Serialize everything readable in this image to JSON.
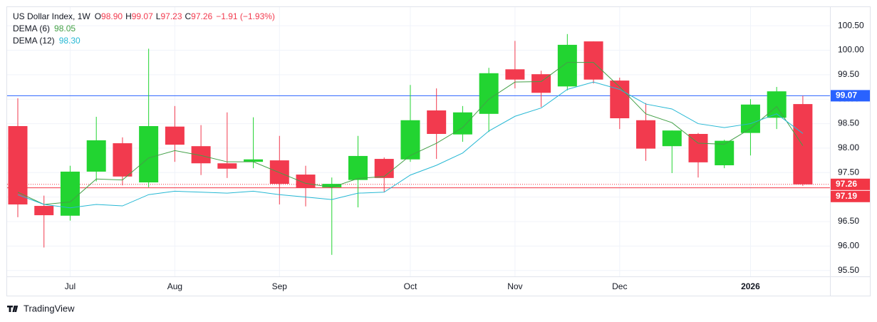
{
  "chart_data": {
    "type": "candlestick",
    "title": "US Dollar Index, 1W",
    "ohlc_legend": [
      {
        "key": "O",
        "value": "98.90"
      },
      {
        "key": "H",
        "value": "99.07"
      },
      {
        "key": "L",
        "value": "97.23"
      },
      {
        "key": "C",
        "value": "97.26"
      }
    ],
    "change": "−1.91 (−1.93%)",
    "categories": [
      null,
      null,
      "Jul",
      null,
      null,
      null,
      "Aug",
      null,
      null,
      null,
      "Sep",
      null,
      null,
      null,
      null,
      "Oct",
      null,
      null,
      null,
      "Nov",
      null,
      null,
      null,
      "Dec",
      null,
      null,
      null,
      null,
      "2026",
      null,
      null
    ],
    "open": [
      98.45,
      96.82,
      96.62,
      97.52,
      98.1,
      97.3,
      98.44,
      98.04,
      97.69,
      97.72,
      97.75,
      97.46,
      97.2,
      97.35,
      97.78,
      97.77,
      98.77,
      98.28,
      98.7,
      99.61,
      99.51,
      99.26,
      100.18,
      99.38,
      98.57,
      98.04,
      98.29,
      97.65,
      98.31,
      98.62,
      98.9
    ],
    "high": [
      99.02,
      97.03,
      97.64,
      98.64,
      98.22,
      100.03,
      98.86,
      98.47,
      98.73,
      98.63,
      98.25,
      97.64,
      97.4,
      98.25,
      97.81,
      99.29,
      99.22,
      98.86,
      99.64,
      100.19,
      99.58,
      100.33,
      100.18,
      99.44,
      98.92,
      98.36,
      98.31,
      98.17,
      99.0,
      99.25,
      99.07
    ],
    "low": [
      96.59,
      95.97,
      96.52,
      97.32,
      97.24,
      97.2,
      97.72,
      97.45,
      97.39,
      97.59,
      96.85,
      96.81,
      95.82,
      96.79,
      97.1,
      97.72,
      97.78,
      98.13,
      98.33,
      99.22,
      98.84,
      99.18,
      99.32,
      98.39,
      97.74,
      97.49,
      97.4,
      97.59,
      97.85,
      98.39,
      97.23
    ],
    "close": [
      96.85,
      96.63,
      97.52,
      98.16,
      97.42,
      98.45,
      98.07,
      97.69,
      97.58,
      97.77,
      97.27,
      97.19,
      97.27,
      97.84,
      97.39,
      98.57,
      98.29,
      98.73,
      99.53,
      99.4,
      99.13,
      100.11,
      99.4,
      98.61,
      97.99,
      98.36,
      97.71,
      98.15,
      98.89,
      99.16,
      97.26
    ],
    "up_color": "#22d431",
    "down_color": "#f23a4e",
    "series": [
      {
        "name": "DEMA (6)",
        "color": "#43a047",
        "legend_value": "98.05",
        "values": [
          97.1,
          96.85,
          96.9,
          97.37,
          97.35,
          97.8,
          97.95,
          97.85,
          97.72,
          97.72,
          97.5,
          97.28,
          97.2,
          97.38,
          97.42,
          97.85,
          98.1,
          98.42,
          99.0,
          99.35,
          99.36,
          99.75,
          99.75,
          99.25,
          98.7,
          98.52,
          98.1,
          98.08,
          98.4,
          98.85,
          98.05
        ]
      },
      {
        "name": "DEMA (12)",
        "color": "#26b8d4",
        "legend_value": "98.30",
        "values": [
          97.05,
          96.85,
          96.78,
          96.85,
          96.82,
          97.05,
          97.12,
          97.1,
          97.08,
          97.12,
          97.05,
          97.0,
          96.95,
          97.08,
          97.1,
          97.45,
          97.65,
          97.9,
          98.35,
          98.65,
          98.82,
          99.2,
          99.35,
          99.2,
          98.9,
          98.8,
          98.5,
          98.42,
          98.5,
          98.7,
          98.3
        ]
      }
    ],
    "price_lines": [
      {
        "value": 99.07,
        "color": "#2962ff",
        "style": "solid"
      },
      {
        "value": 97.26,
        "color": "#f23645",
        "style": "dotted"
      },
      {
        "value": 97.19,
        "color": "#f23645",
        "style": "solid"
      }
    ],
    "ylim": [
      95.38,
      100.88
    ],
    "yticks": [
      {
        "value": 95.5,
        "label": "95.50"
      },
      {
        "value": 96,
        "label": "96.00"
      },
      {
        "value": 96.5,
        "label": "96.50"
      },
      {
        "value": 97,
        "label": "97.00"
      },
      {
        "value": 97.5,
        "label": "97.50"
      },
      {
        "value": 98,
        "label": "98.00"
      },
      {
        "value": 98.5,
        "label": "98.50"
      },
      {
        "value": 99,
        "label": "99.00"
      },
      {
        "value": 99.5,
        "label": "99.50"
      },
      {
        "value": 100,
        "label": "100.00"
      },
      {
        "value": 100.5,
        "label": "100.50"
      }
    ],
    "grid": true
  },
  "brand": "TradingView"
}
